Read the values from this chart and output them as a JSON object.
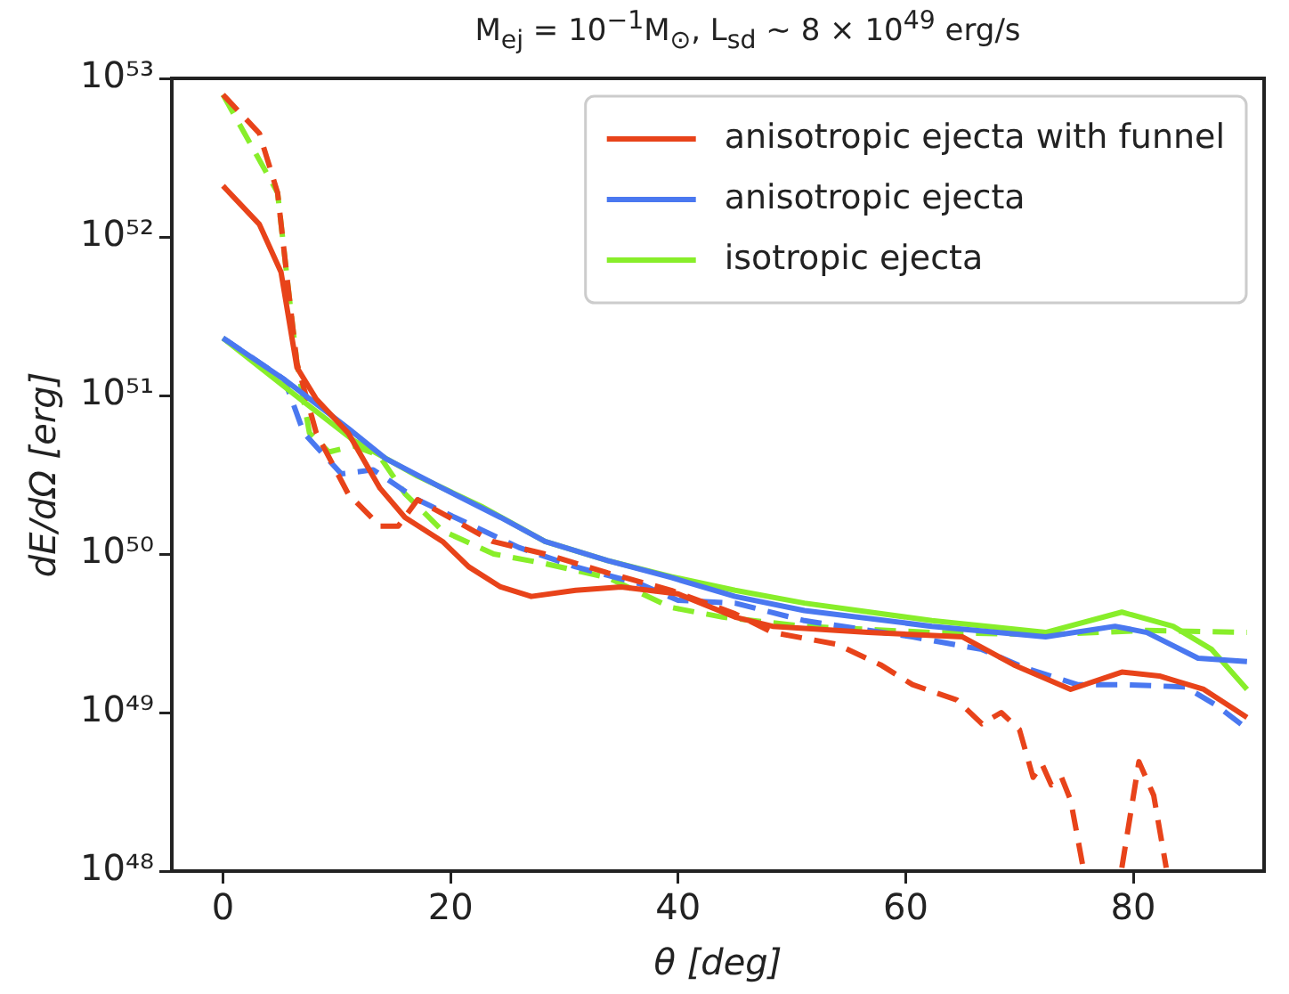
{
  "chart_data": {
    "type": "line",
    "title": "M$_{ej}$ = 10$^{−1}$M$_{⊙}$, L$_{sd}$ ~ 8 × 10$^{49}$ erg/s",
    "xlabel": "θ [deg]",
    "ylabel": "dE/dΩ [erg]",
    "log": "y",
    "grid": false,
    "legend": "top right",
    "marker": "none",
    "xlim": [
      -4.5,
      91.5
    ],
    "xticks": [
      0,
      20,
      40,
      60,
      80
    ],
    "ylim": [
      1e+48,
      1e+53
    ],
    "yticks": [
      {
        "value": 1e+48,
        "label": "10⁴⁸"
      },
      {
        "value": 1e+49,
        "label": "10⁴⁹"
      },
      {
        "value": 1e+50,
        "label": "10⁵⁰"
      },
      {
        "value": 1e+51,
        "label": "10⁵¹"
      },
      {
        "value": 1e+52,
        "label": "10⁵²"
      },
      {
        "value": 1e+53,
        "label": "10⁵³"
      }
    ],
    "series": [
      {
        "name": "anisotropic ejecta with funnel",
        "color": "#e8431a",
        "line_style": "solid",
        "x": [
          0,
          3.2,
          5.1,
          6.5,
          8.2,
          11,
          13.8,
          16,
          19.3,
          21.6,
          24.4,
          27.1,
          31,
          35,
          40,
          45,
          48.3,
          56.7,
          65,
          69.5,
          74.5,
          79,
          82.3,
          86.2,
          90
        ],
        "values": [
          2.1e+52,
          1.2e+52,
          6e+51,
          1.5e+51,
          9.5e+50,
          5.8e+50,
          2.6e+50,
          1.7e+50,
          1.2e+50,
          8.3e+49,
          6.2e+49,
          5.4e+49,
          5.9e+49,
          6.2e+49,
          5.6e+49,
          4e+49,
          3.5e+49,
          3.2e+49,
          3e+49,
          2e+49,
          1.4e+49,
          1.8e+49,
          1.7e+49,
          1.4e+49,
          9.3e+48
        ]
      },
      {
        "name": "anisotropic ejecta",
        "color": "#4a78f0",
        "line_style": "solid",
        "x": [
          0,
          5.4,
          11,
          14.3,
          19.3,
          24.4,
          28.3,
          33.8,
          39.4,
          45,
          51.1,
          62.3,
          72.3,
          78.4,
          81.2,
          85.7,
          90
        ],
        "values": [
          2.3e+51,
          1.26e+51,
          6.2e+50,
          4e+50,
          2.6e+50,
          1.7e+50,
          1.2e+50,
          9.1e+49,
          7.1e+49,
          5.4e+49,
          4.4e+49,
          3.5e+49,
          3e+49,
          3.5e+49,
          3.2e+49,
          2.2e+49,
          2.1e+49
        ]
      },
      {
        "name": "isotropic ejecta",
        "color": "#88ee2a",
        "line_style": "solid",
        "x": [
          0,
          6,
          11.5,
          17.1,
          22.7,
          28.3,
          33.8,
          39.4,
          45,
          51.1,
          62.3,
          72.3,
          79,
          83.5,
          86.9,
          90
        ],
        "values": [
          2.3e+51,
          1.05e+51,
          5.2e+50,
          3.1e+50,
          2e+50,
          1.2e+50,
          9.1e+49,
          7.2e+49,
          5.9e+49,
          4.9e+49,
          3.8e+49,
          3.2e+49,
          4.3e+49,
          3.5e+49,
          2.5e+49,
          1.4e+49
        ]
      },
      {
        "color": "#e8431a",
        "line_style": "dashed",
        "x": [
          0,
          3.2,
          4.8,
          5.7,
          6.5,
          8.2,
          11,
          13.8,
          15.4,
          17.1,
          19.9,
          23.7,
          28.3,
          33.8,
          39.4,
          45,
          48.3,
          53.9,
          57.8,
          60.6,
          64.5,
          66.7,
          68.4,
          70,
          71.2,
          72,
          72.8,
          73.7,
          74.5,
          75.6,
          77,
          79,
          80.5,
          81.8,
          82.9
        ],
        "values": [
          7.9e+52,
          4.5e+52,
          1.9e+52,
          5e+51,
          1.6e+51,
          5.8e+50,
          2.4e+50,
          1.5e+50,
          1.5e+50,
          2.2e+50,
          1.7e+50,
          1.2e+50,
          1e+50,
          7.6e+49,
          5.9e+49,
          4.2e+49,
          3.2e+49,
          2.7e+49,
          2e+49,
          1.5e+49,
          1.2e+49,
          8.5e+48,
          1e+49,
          7.8e+48,
          3.9e+48,
          4.7e+48,
          3.5e+48,
          3.9e+48,
          2.8e+48,
          1.05e+48,
          null,
          1.05e+48,
          4.9e+48,
          3e+48,
          1.05e+48
        ]
      },
      {
        "color": "#4a78f0",
        "line_style": "dashed",
        "x": [
          0,
          5.4,
          7.1,
          10.4,
          13.2,
          17.1,
          20.4,
          26,
          31,
          36.6,
          40,
          45,
          51.1,
          60.6,
          66.7,
          70.6,
          75.1,
          79,
          84.6,
          87.4,
          90
        ],
        "values": [
          2.3e+51,
          1.26e+51,
          5.8e+50,
          3.2e+50,
          3.4e+50,
          2.2e+50,
          1.7e+50,
          1.1e+50,
          8.3e+49,
          6.5e+49,
          5.1e+49,
          4.9e+49,
          3.8e+49,
          3e+49,
          2.5e+49,
          1.9e+49,
          1.5e+49,
          1.5e+49,
          1.45e+49,
          1.1e+49,
          7.9e+48
        ]
      },
      {
        "color": "#88ee2a",
        "line_style": "dashed",
        "x": [
          0,
          4.8,
          5.7,
          6.5,
          7.6,
          9.3,
          11.5,
          13.7,
          16,
          19.3,
          23.8,
          28.3,
          33.8,
          39.4,
          43.9,
          51.1,
          62.3,
          72.3,
          81.2,
          90
        ],
        "values": [
          7.9e+52,
          1.9e+52,
          5e+51,
          1.6e+51,
          5.8e+50,
          4.4e+50,
          4.8e+50,
          4.2e+50,
          2.4e+50,
          1.4e+50,
          1e+50,
          8.7e+49,
          7.1e+49,
          4.6e+49,
          4e+49,
          3.5e+49,
          3.2e+49,
          3.1e+49,
          3.3e+49,
          3.2e+49
        ]
      }
    ]
  }
}
